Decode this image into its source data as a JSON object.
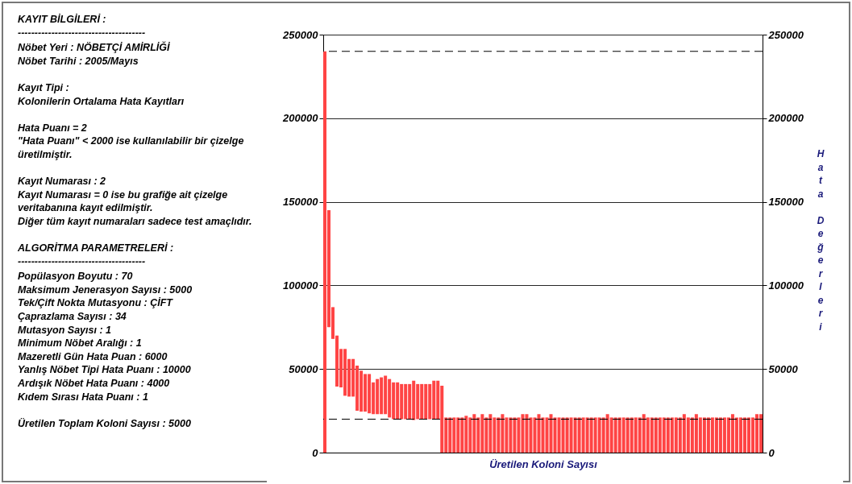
{
  "chart_data": {
    "type": "bar",
    "xlabel": "Üretilen Koloni Sayısı",
    "y2label": "Hata Değerleri",
    "categories": [
      null,
      null,
      null,
      null,
      null,
      null,
      null,
      null,
      null,
      null,
      null,
      null,
      null,
      null,
      null,
      null,
      null,
      null,
      null,
      null,
      null,
      null,
      null,
      null,
      null,
      null,
      null,
      null,
      null,
      null,
      null,
      null,
      null,
      null,
      null,
      null,
      null,
      null,
      null,
      null,
      null,
      null,
      null,
      null,
      null,
      null,
      null,
      null,
      null,
      null,
      null,
      null,
      null,
      null,
      null,
      null,
      null,
      null,
      null,
      null,
      null,
      null,
      null,
      null,
      null,
      null,
      null,
      null,
      null,
      null,
      null,
      null,
      null,
      null,
      null,
      null,
      null,
      null,
      null,
      null,
      null,
      null,
      null,
      null,
      null,
      null,
      null,
      null,
      null,
      null,
      null,
      null,
      null,
      null,
      null,
      null,
      null,
      null,
      null,
      null,
      null,
      null,
      null,
      null,
      null,
      null,
      null,
      null,
      null
    ],
    "base": [
      0,
      75000,
      68000,
      39500,
      39000,
      34000,
      33500,
      33500,
      25000,
      24500,
      24500,
      23500,
      23000,
      23000,
      23000,
      23000,
      21000,
      20000,
      20000,
      20000,
      20000,
      20000,
      19500,
      20000,
      20000,
      20000,
      20000,
      20000,
      20000,
      0,
      0,
      0,
      0,
      0,
      0,
      0,
      0,
      0,
      0,
      0,
      0,
      0,
      0,
      0,
      0,
      0,
      0,
      0,
      0,
      0,
      0,
      0,
      0,
      0,
      0,
      0,
      0,
      0,
      0,
      0,
      0,
      0,
      0,
      0,
      0,
      0,
      0,
      0,
      0,
      0,
      0,
      0,
      0,
      0,
      0,
      0,
      0,
      0,
      0,
      0,
      0,
      0,
      0,
      0,
      0,
      0,
      0,
      0,
      0,
      0,
      0,
      0,
      0,
      0,
      0,
      0,
      0,
      0,
      0,
      0,
      0,
      0,
      0,
      0,
      0,
      0,
      0,
      0,
      0
    ],
    "values": [
      240000,
      70000,
      19000,
      30500,
      23000,
      28000,
      22500,
      22500,
      27000,
      24500,
      22500,
      23500,
      19000,
      21000,
      22000,
      23000,
      23000,
      22000,
      22000,
      21000,
      21000,
      21000,
      23500,
      21000,
      21000,
      21000,
      21000,
      23000,
      23000,
      40000,
      21000,
      21000,
      21000,
      21000,
      21000,
      22000,
      21000,
      23000,
      21000,
      23000,
      21000,
      23000,
      21000,
      21000,
      23000,
      21000,
      21000,
      21000,
      21000,
      23000,
      23000,
      21000,
      21000,
      23000,
      21000,
      21000,
      23000,
      21000,
      21000,
      21000,
      21000,
      21000,
      21000,
      21000,
      21000,
      21000,
      21000,
      21000,
      21000,
      21000,
      23000,
      21000,
      21000,
      21000,
      21000,
      21000,
      21000,
      21000,
      21000,
      23000,
      21000,
      21000,
      21000,
      21000,
      21000,
      21000,
      21000,
      21000,
      21000,
      23000,
      21000,
      21000,
      23000,
      21000,
      21000,
      21000,
      21000,
      21000,
      21000,
      21000,
      21000,
      23000,
      21000,
      21000,
      21000,
      21000,
      21000,
      23000,
      23000
    ],
    "color": "#ff4444",
    "ylim": [
      0,
      250000
    ],
    "yticks": [
      0,
      50000,
      100000,
      150000,
      200000,
      250000
    ],
    "y2lim": [
      0,
      250000
    ],
    "y2ticks": [
      0,
      50000,
      100000,
      150000,
      200000,
      250000
    ],
    "grid": "y",
    "ref_lines": [
      {
        "axis": "y",
        "value": 240000,
        "line_style": "dashed",
        "color": "#000000"
      },
      {
        "axis": "y",
        "value": 20000,
        "line_style": "dashed",
        "color": "#000000"
      }
    ],
    "annotations": [
      "KAYIT BİLGİLERİ :",
      "--------------------------------------",
      "Nöbet Yeri : NÖBETÇİ AMİRLİĞİ\nNöbet Tarihi : 2005/Mayıs",
      "Kayıt Tipi :\nKolonilerin Ortalama Hata Kayıtları",
      "Hata Puanı = 2\n\"Hata Puanı\" < 2000 ise kullanılabilir bir çizelge üretilmiştir.",
      "Kayıt Numarası : 2\nKayıt Numarası = 0 ise bu grafiğe ait çizelge veritabanına kayıt edilmiştir.\nDiğer tüm kayıt numaraları sadece test amaçlıdır.",
      "ALGORİTMA PARAMETRELERİ :",
      "--------------------------------------",
      "Popülasyon Boyutu : 70\nMaksimum Jenerasyon Sayısı : 5000\nTek/Çift Nokta Mutasyonu : ÇİFT\nÇaprazlama Sayısı : 34\nMutasyon Sayısı : 1\nMinimum Nöbet Aralığı : 1\nMazeretli Gün Hata Puan : 6000\nYanlış Nöbet Tipi Hata Puanı : 10000\nArdışık Nöbet Hata Puanı : 4000\nKıdem Sırası Hata Puanı : 1",
      "Üretilen Toplam Koloni Sayısı : 5000"
    ]
  }
}
